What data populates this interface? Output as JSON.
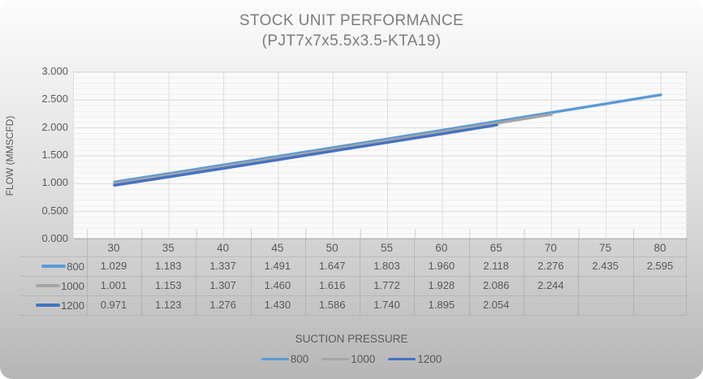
{
  "title": {
    "line1": "STOCK UNIT PERFORMANCE",
    "line2": "(PJT7x7x5.5x3.5-KTA19)"
  },
  "y_axis": {
    "title": "FLOW (MMSCFD)",
    "tick_labels": [
      "0.000",
      "0.500",
      "1.000",
      "1.500",
      "2.000",
      "2.500",
      "3.000"
    ]
  },
  "x_axis": {
    "title": "SUCTION PRESSURE"
  },
  "colors": {
    "series_800": "#5B9BD5",
    "series_1000": "#A5A5A5",
    "series_1200": "#4472C4",
    "grid_major": "#dadada",
    "grid_minor": "#eeeeee",
    "axis_line": "#b9b9b9"
  },
  "table": {
    "header": [
      "30",
      "35",
      "40",
      "45",
      "50",
      "55",
      "60",
      "65",
      "70",
      "75",
      "80"
    ],
    "rows": [
      {
        "label": "800",
        "color": "#5B9BD5",
        "cells": [
          "1.029",
          "1.183",
          "1.337",
          "1.491",
          "1.647",
          "1.803",
          "1.960",
          "2.118",
          "2.276",
          "2.435",
          "2.595"
        ]
      },
      {
        "label": "1000",
        "color": "#A5A5A5",
        "cells": [
          "1.001",
          "1.153",
          "1.307",
          "1.460",
          "1.616",
          "1.772",
          "1.928",
          "2.086",
          "2.244",
          "",
          ""
        ]
      },
      {
        "label": "1200",
        "color": "#4472C4",
        "cells": [
          "0.971",
          "1.123",
          "1.276",
          "1.430",
          "1.586",
          "1.740",
          "1.895",
          "2.054",
          "",
          "",
          ""
        ]
      }
    ]
  },
  "legend": {
    "entries": [
      {
        "label": "800",
        "color": "#5B9BD5"
      },
      {
        "label": "1000",
        "color": "#A5A5A5"
      },
      {
        "label": "1200",
        "color": "#4472C4"
      }
    ]
  },
  "chart_data": {
    "type": "line",
    "title": "STOCK UNIT PERFORMANCE (PJT7x7x5.5x3.5-KTA19)",
    "xlabel": "SUCTION PRESSURE",
    "ylabel": "FLOW (MMSCFD)",
    "ylim": [
      0.0,
      3.0
    ],
    "y_major_step": 0.5,
    "y_minor_step": 0.1,
    "grid": true,
    "legend_position": "bottom",
    "data_table_shown": true,
    "categories": [
      30,
      35,
      40,
      45,
      50,
      55,
      60,
      65,
      70,
      75,
      80
    ],
    "series": [
      {
        "name": "800",
        "color": "#5B9BD5",
        "values": [
          1.029,
          1.183,
          1.337,
          1.491,
          1.647,
          1.803,
          1.96,
          2.118,
          2.276,
          2.435,
          2.595
        ]
      },
      {
        "name": "1000",
        "color": "#A5A5A5",
        "values": [
          1.001,
          1.153,
          1.307,
          1.46,
          1.616,
          1.772,
          1.928,
          2.086,
          2.244,
          null,
          null
        ]
      },
      {
        "name": "1200",
        "color": "#4472C4",
        "values": [
          0.971,
          1.123,
          1.276,
          1.43,
          1.586,
          1.74,
          1.895,
          2.054,
          null,
          null,
          null
        ]
      }
    ]
  }
}
